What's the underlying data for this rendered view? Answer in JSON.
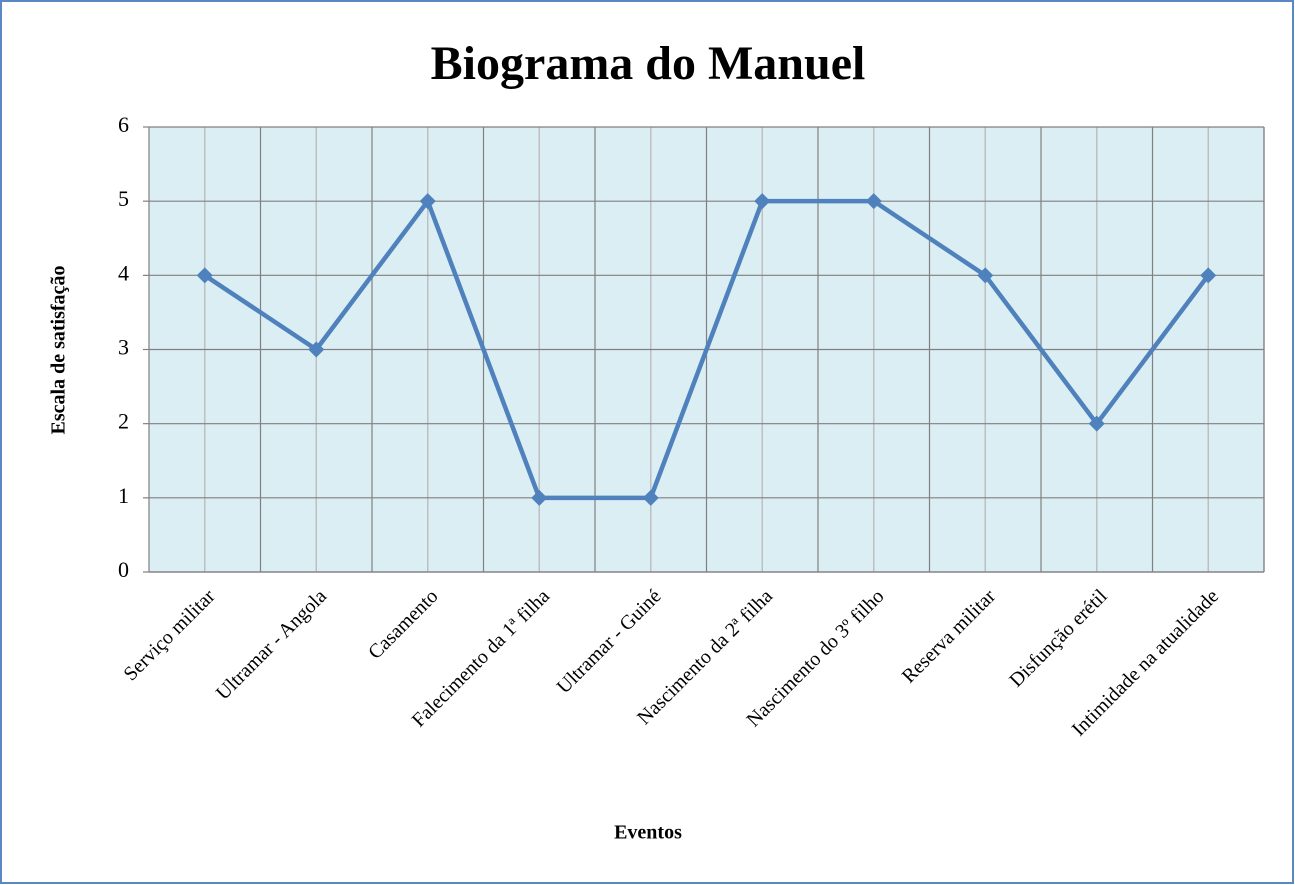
{
  "chart_data": {
    "type": "line",
    "title": "Biograma do Manuel",
    "x_label": "Eventos",
    "y_label": "Escala de satisfação",
    "categories": [
      "Serviço militar",
      "Ultramar - Angola",
      "Casamento",
      "Falecimento da 1ª filha",
      "Ultramar - Guiné",
      "Nascimento da 2ª filha",
      "Nascimento do 3º filho",
      "Reserva militar",
      "Disfunção erétil",
      "Intimidade na atualidade"
    ],
    "series": [
      {
        "name": "Escala de satisfação",
        "color": "#4f81bd",
        "values": [
          4,
          3,
          5,
          1,
          1,
          5,
          5,
          4,
          2,
          4
        ]
      }
    ],
    "ylim": [
      0,
      6
    ],
    "yticks": [
      0,
      1,
      2,
      3,
      4,
      5,
      6
    ],
    "grid": true
  }
}
